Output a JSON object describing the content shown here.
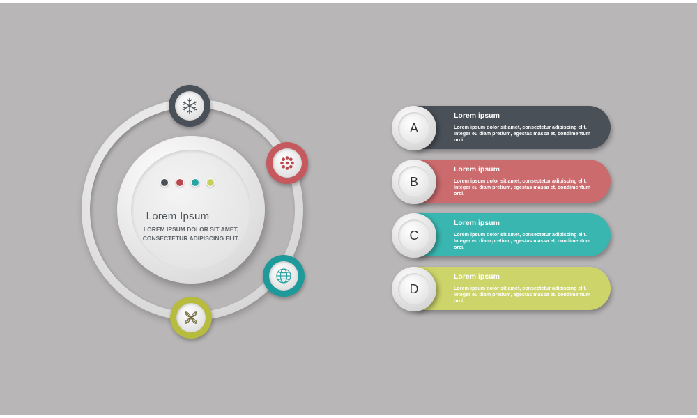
{
  "center": {
    "title": "Lorem Ipsum",
    "subtitle": "LOREM IPSUM DOLOR SIT AMET,\nCONSECTETUR ADIPISCING ELIT.",
    "dots": [
      "#4a5058",
      "#b9474e",
      "#2aa3a3",
      "#c8cf5a"
    ]
  },
  "badges": [
    {
      "icon": "snowflake-icon",
      "color": "#4a5058"
    },
    {
      "icon": "flower-icon",
      "color": "#c6595e"
    },
    {
      "icon": "globe-icon",
      "color": "#1e9a9a"
    },
    {
      "icon": "leaf-ornament-icon",
      "color": "#b7bc3f"
    }
  ],
  "items": [
    {
      "letter": "A",
      "title": "Lorem ipsum",
      "body": "Lorem ipsum dolor sit amet, consectetur adipiscing elit. Integer eu diam pretium, egestas massa et, condimentum orci.",
      "color": "#4a5058"
    },
    {
      "letter": "B",
      "title": "Lorem ipsum",
      "body": "Lorem ipsum dolor sit amet, consectetur adipiscing elit. Integer eu diam pretium, egestas massa et, condimentum orci.",
      "color": "#cb6b6e"
    },
    {
      "letter": "C",
      "title": "Lorem ipsum",
      "body": "Lorem ipsum dolor sit amet, consectetur adipiscing elit. Integer eu diam pretium, egestas massa et, condimentum orci.",
      "color": "#39b6b0"
    },
    {
      "letter": "D",
      "title": "Lorem ipsum",
      "body": "Lorem ipsum dolor sit amet, consectetur adipiscing elit. Integer eu diam pretium, egestas massa et, condimentum orci.",
      "color": "#cdd46a"
    }
  ]
}
